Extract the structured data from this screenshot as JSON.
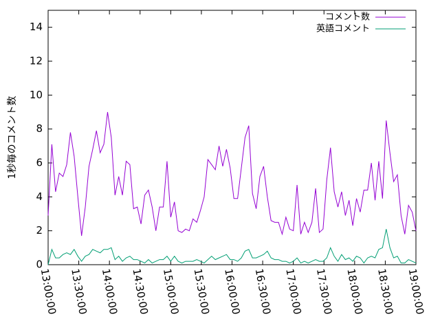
{
  "chart_data": {
    "type": "line",
    "ylabel": "1秒毎のコメント数",
    "xlim": [
      "13:00:00",
      "19:00:00"
    ],
    "ylim": [
      0,
      15
    ],
    "x_ticks": [
      "13:00:00",
      "13:30:00",
      "14:00:00",
      "14:30:00",
      "15:00:00",
      "15:30:00",
      "16:00:00",
      "16:30:00",
      "17:00:00",
      "17:30:00",
      "18:00:00",
      "18:30:00",
      "19:00:00"
    ],
    "y_ticks": [
      0,
      2,
      4,
      6,
      8,
      10,
      12,
      14
    ],
    "grid": false,
    "legend_position": "top-right",
    "sample_interval": "3 minutes",
    "series": [
      {
        "name": "コメント数",
        "color": "#9400d3",
        "values": [
          2.9,
          7.1,
          4.3,
          5.4,
          5.2,
          5.9,
          7.8,
          6.4,
          4.0,
          1.7,
          3.4,
          5.8,
          6.8,
          7.9,
          6.6,
          7.1,
          9.0,
          7.5,
          4.1,
          5.2,
          4.1,
          6.1,
          5.9,
          3.3,
          3.4,
          2.4,
          4.1,
          4.4,
          3.4,
          2.0,
          3.4,
          3.4,
          6.1,
          2.8,
          3.7,
          2.0,
          1.9,
          2.1,
          2.0,
          2.7,
          2.5,
          3.2,
          4.0,
          6.2,
          5.9,
          5.6,
          7.0,
          5.8,
          6.8,
          5.7,
          3.9,
          3.9,
          5.7,
          7.5,
          8.2,
          4.2,
          3.3,
          5.2,
          5.8,
          4.0,
          2.6,
          2.5,
          2.5,
          1.8,
          2.8,
          2.1,
          2.0,
          4.7,
          1.8,
          2.5,
          1.9,
          2.5,
          4.5,
          1.9,
          2.1,
          5.0,
          6.9,
          4.3,
          3.4,
          4.3,
          2.9,
          3.8,
          2.3,
          3.9,
          3.1,
          4.4,
          4.4,
          6.0,
          3.8,
          6.1,
          3.9,
          8.5,
          6.6,
          4.9,
          5.3,
          2.9,
          1.8,
          3.5,
          3.1,
          2.0
        ]
      },
      {
        "name": "英語コメント",
        "color": "#009e73",
        "values": [
          0.0,
          0.9,
          0.4,
          0.4,
          0.6,
          0.7,
          0.6,
          0.9,
          0.5,
          0.2,
          0.5,
          0.6,
          0.9,
          0.8,
          0.7,
          0.9,
          0.9,
          1.0,
          0.3,
          0.5,
          0.2,
          0.4,
          0.5,
          0.3,
          0.3,
          0.2,
          0.1,
          0.3,
          0.1,
          0.2,
          0.3,
          0.3,
          0.5,
          0.2,
          0.5,
          0.2,
          0.1,
          0.2,
          0.2,
          0.2,
          0.3,
          0.2,
          0.1,
          0.3,
          0.5,
          0.3,
          0.4,
          0.5,
          0.6,
          0.3,
          0.3,
          0.2,
          0.4,
          0.8,
          0.9,
          0.4,
          0.4,
          0.5,
          0.6,
          0.8,
          0.4,
          0.3,
          0.3,
          0.2,
          0.2,
          0.1,
          0.2,
          0.4,
          0.1,
          0.2,
          0.1,
          0.2,
          0.3,
          0.2,
          0.2,
          0.4,
          1.0,
          0.5,
          0.2,
          0.6,
          0.3,
          0.4,
          0.2,
          0.5,
          0.4,
          0.1,
          0.4,
          0.5,
          0.4,
          0.9,
          1.0,
          2.1,
          1.0,
          0.4,
          0.5,
          0.1,
          0.1,
          0.3,
          0.2,
          0.1
        ]
      }
    ]
  }
}
